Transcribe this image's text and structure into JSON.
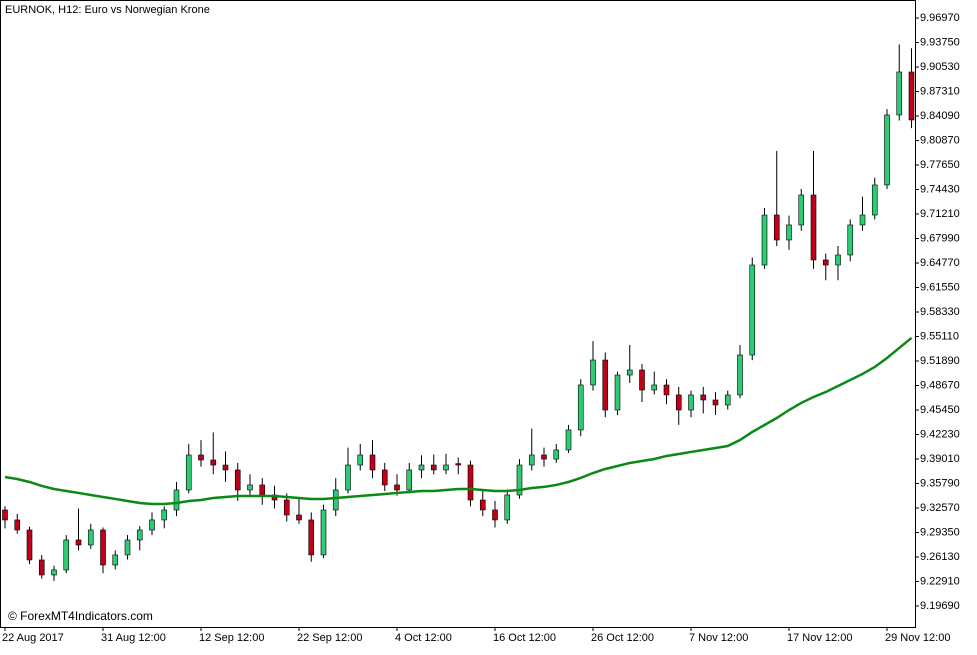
{
  "chart_data": {
    "type": "candlestick",
    "title": "EURNOK, H12:  Euro vs Norwegian Krone",
    "watermark": "© ForexMT4Indicators.com",
    "categories": [
      "22 Aug 2017",
      null,
      null,
      null,
      null,
      null,
      null,
      null,
      "31 Aug 12:00",
      null,
      null,
      null,
      null,
      null,
      null,
      null,
      "12 Sep 12:00",
      null,
      null,
      null,
      null,
      null,
      null,
      null,
      "22 Sep 12:00",
      null,
      null,
      null,
      null,
      null,
      null,
      null,
      "4 Oct 12:00",
      null,
      null,
      null,
      null,
      null,
      null,
      null,
      "16 Oct 12:00",
      null,
      null,
      null,
      null,
      null,
      null,
      null,
      "26 Oct 12:00",
      null,
      null,
      null,
      null,
      null,
      null,
      null,
      "7 Nov 12:00",
      null,
      null,
      null,
      null,
      null,
      null,
      null,
      "17 Nov 12:00",
      null,
      null,
      null,
      null,
      null,
      null,
      null,
      "29 Nov 12:00",
      null,
      null
    ],
    "open": [
      9.3231,
      9.31,
      9.2968,
      9.2574,
      9.2377,
      9.2443,
      9.2837,
      9.2771,
      9.2968,
      9.2508,
      9.264,
      9.2837,
      9.2968,
      9.31,
      9.3231,
      9.3494,
      9.3954,
      9.3888,
      9.3822,
      9.3757,
      9.3494,
      9.356,
      9.3428,
      9.3362,
      9.3165,
      9.31,
      9.264,
      9.3231,
      9.3494,
      9.3822,
      9.3954,
      9.3757,
      9.356,
      9.3494,
      9.3757,
      9.3822,
      9.3757,
      9.384,
      9.3822,
      9.3362,
      9.3231,
      9.31,
      9.3428,
      9.3822,
      9.3954,
      9.39,
      9.402,
      9.4283,
      9.4874,
      9.5202,
      9.4545,
      9.5005,
      9.5071,
      9.4808,
      9.4874,
      9.4743,
      9.4545,
      9.4743,
      9.4677,
      9.4611,
      9.4743,
      9.5268,
      9.6451,
      9.7108,
      9.678,
      9.6977,
      9.7371,
      9.6517,
      9.6451,
      9.6583,
      9.6977,
      9.7108,
      9.7503,
      9.8423,
      9.8988
    ],
    "high": [
      9.328,
      9.318,
      9.301,
      9.264,
      9.25,
      9.29,
      9.325,
      9.305,
      9.3,
      9.27,
      9.29,
      9.302,
      9.32,
      9.328,
      9.36,
      9.41,
      9.415,
      9.425,
      9.4,
      9.385,
      9.37,
      9.365,
      9.355,
      9.345,
      9.34,
      9.32,
      9.33,
      9.365,
      9.405,
      9.41,
      9.415,
      9.385,
      9.37,
      9.385,
      9.395,
      9.396,
      9.397,
      9.392,
      9.388,
      9.35,
      9.335,
      9.35,
      9.39,
      9.43,
      9.405,
      9.41,
      9.435,
      9.495,
      9.545,
      9.53,
      9.505,
      9.54,
      9.515,
      9.505,
      9.495,
      9.485,
      9.48,
      9.485,
      9.478,
      9.48,
      9.54,
      9.655,
      9.72,
      9.795,
      9.71,
      9.745,
      9.795,
      9.66,
      9.67,
      9.705,
      9.735,
      9.76,
      9.85,
      9.935,
      9.93
    ],
    "low": [
      9.299,
      9.292,
      9.252,
      9.233,
      9.23,
      9.24,
      9.27,
      9.272,
      9.24,
      9.245,
      9.258,
      9.27,
      9.29,
      9.299,
      9.315,
      9.345,
      9.38,
      9.37,
      9.36,
      9.335,
      9.34,
      9.33,
      9.325,
      9.308,
      9.305,
      9.255,
      9.26,
      9.315,
      9.345,
      9.375,
      9.365,
      9.348,
      9.342,
      9.345,
      9.365,
      9.37,
      9.37,
      9.37,
      9.328,
      9.315,
      9.3,
      9.305,
      9.338,
      9.375,
      9.38,
      9.385,
      9.398,
      9.42,
      9.48,
      9.445,
      9.448,
      9.49,
      9.465,
      9.475,
      9.462,
      9.435,
      9.445,
      9.45,
      9.448,
      9.455,
      9.47,
      9.52,
      9.64,
      9.67,
      9.665,
      9.69,
      9.64,
      9.625,
      9.625,
      9.65,
      9.69,
      9.705,
      9.745,
      9.835,
      9.825
    ],
    "close": [
      9.31,
      9.2968,
      9.2574,
      9.2377,
      9.2443,
      9.2837,
      9.2771,
      9.2968,
      9.2508,
      9.264,
      9.2837,
      9.2968,
      9.31,
      9.3231,
      9.3494,
      9.3954,
      9.3888,
      9.3822,
      9.3757,
      9.3494,
      9.356,
      9.3428,
      9.3362,
      9.3165,
      9.31,
      9.264,
      9.3231,
      9.3494,
      9.3822,
      9.3954,
      9.3757,
      9.356,
      9.3494,
      9.3757,
      9.3822,
      9.3757,
      9.3822,
      9.3822,
      9.3362,
      9.3231,
      9.31,
      9.3428,
      9.3822,
      9.3954,
      9.39,
      9.402,
      9.4283,
      9.4874,
      9.5202,
      9.4545,
      9.5005,
      9.5071,
      9.4808,
      9.4874,
      9.4743,
      9.4545,
      9.4743,
      9.4677,
      9.4611,
      9.4743,
      9.5268,
      9.6451,
      9.7108,
      9.678,
      9.6977,
      9.7371,
      9.6517,
      9.6451,
      9.6583,
      9.6977,
      9.7108,
      9.7503,
      9.8423,
      9.8988,
      9.8357
    ],
    "up_color": "#2fcb74",
    "down_color": "#c0001a",
    "moving_average": {
      "color": "#0a8a14",
      "values": [
        9.3665,
        9.3638,
        9.3599,
        9.3547,
        9.3507,
        9.3481,
        9.3455,
        9.3428,
        9.3402,
        9.3376,
        9.3349,
        9.3323,
        9.331,
        9.331,
        9.3323,
        9.3349,
        9.3362,
        9.3389,
        9.3402,
        9.3415,
        9.3415,
        9.3415,
        9.3415,
        9.3402,
        9.3389,
        9.3376,
        9.3376,
        9.3389,
        9.3402,
        9.3415,
        9.3428,
        9.3441,
        9.3455,
        9.3468,
        9.3481,
        9.3481,
        9.3494,
        9.3507,
        9.3507,
        9.3494,
        9.3481,
        9.3481,
        9.3494,
        9.352,
        9.3534,
        9.356,
        9.3599,
        9.3652,
        9.3717,
        9.377,
        9.3809,
        9.3849,
        9.3875,
        9.3901,
        9.3941,
        9.3967,
        9.3994,
        9.402,
        9.4046,
        9.4072,
        9.4151,
        9.4256,
        9.4348,
        9.444,
        9.4545,
        9.4638,
        9.4716,
        9.4782,
        9.4861,
        9.4939,
        9.5019,
        9.5111,
        9.5229,
        9.5361,
        9.5492
      ]
    },
    "ylim": [
      9.1693,
      9.9934
    ],
    "yticks": [
      {
        "value": 9.9697,
        "label": "9.96970"
      },
      {
        "value": 9.9375,
        "label": "9.93750"
      },
      {
        "value": 9.9053,
        "label": "9.90530"
      },
      {
        "value": 9.8731,
        "label": "9.87310"
      },
      {
        "value": 9.8409,
        "label": "9.84090"
      },
      {
        "value": 9.8087,
        "label": "9.80870"
      },
      {
        "value": 9.7765,
        "label": "9.77650"
      },
      {
        "value": 9.7443,
        "label": "9.74430"
      },
      {
        "value": 9.7121,
        "label": "9.71210"
      },
      {
        "value": 9.6799,
        "label": "9.67990"
      },
      {
        "value": 9.6477,
        "label": "9.64770"
      },
      {
        "value": 9.6155,
        "label": "9.61550"
      },
      {
        "value": 9.5833,
        "label": "9.58330"
      },
      {
        "value": 9.5511,
        "label": "9.55110"
      },
      {
        "value": 9.5189,
        "label": "9.51890"
      },
      {
        "value": 9.4867,
        "label": "9.48670"
      },
      {
        "value": 9.4545,
        "label": "9.45450"
      },
      {
        "value": 9.4223,
        "label": "9.42230"
      },
      {
        "value": 9.3901,
        "label": "9.39010"
      },
      {
        "value": 9.3579,
        "label": "9.35790"
      },
      {
        "value": 9.3257,
        "label": "9.32570"
      },
      {
        "value": 9.2935,
        "label": "9.29350"
      },
      {
        "value": 9.2613,
        "label": "9.26130"
      },
      {
        "value": 9.2291,
        "label": "9.22910"
      },
      {
        "value": 9.1969,
        "label": "9.19690"
      }
    ]
  }
}
